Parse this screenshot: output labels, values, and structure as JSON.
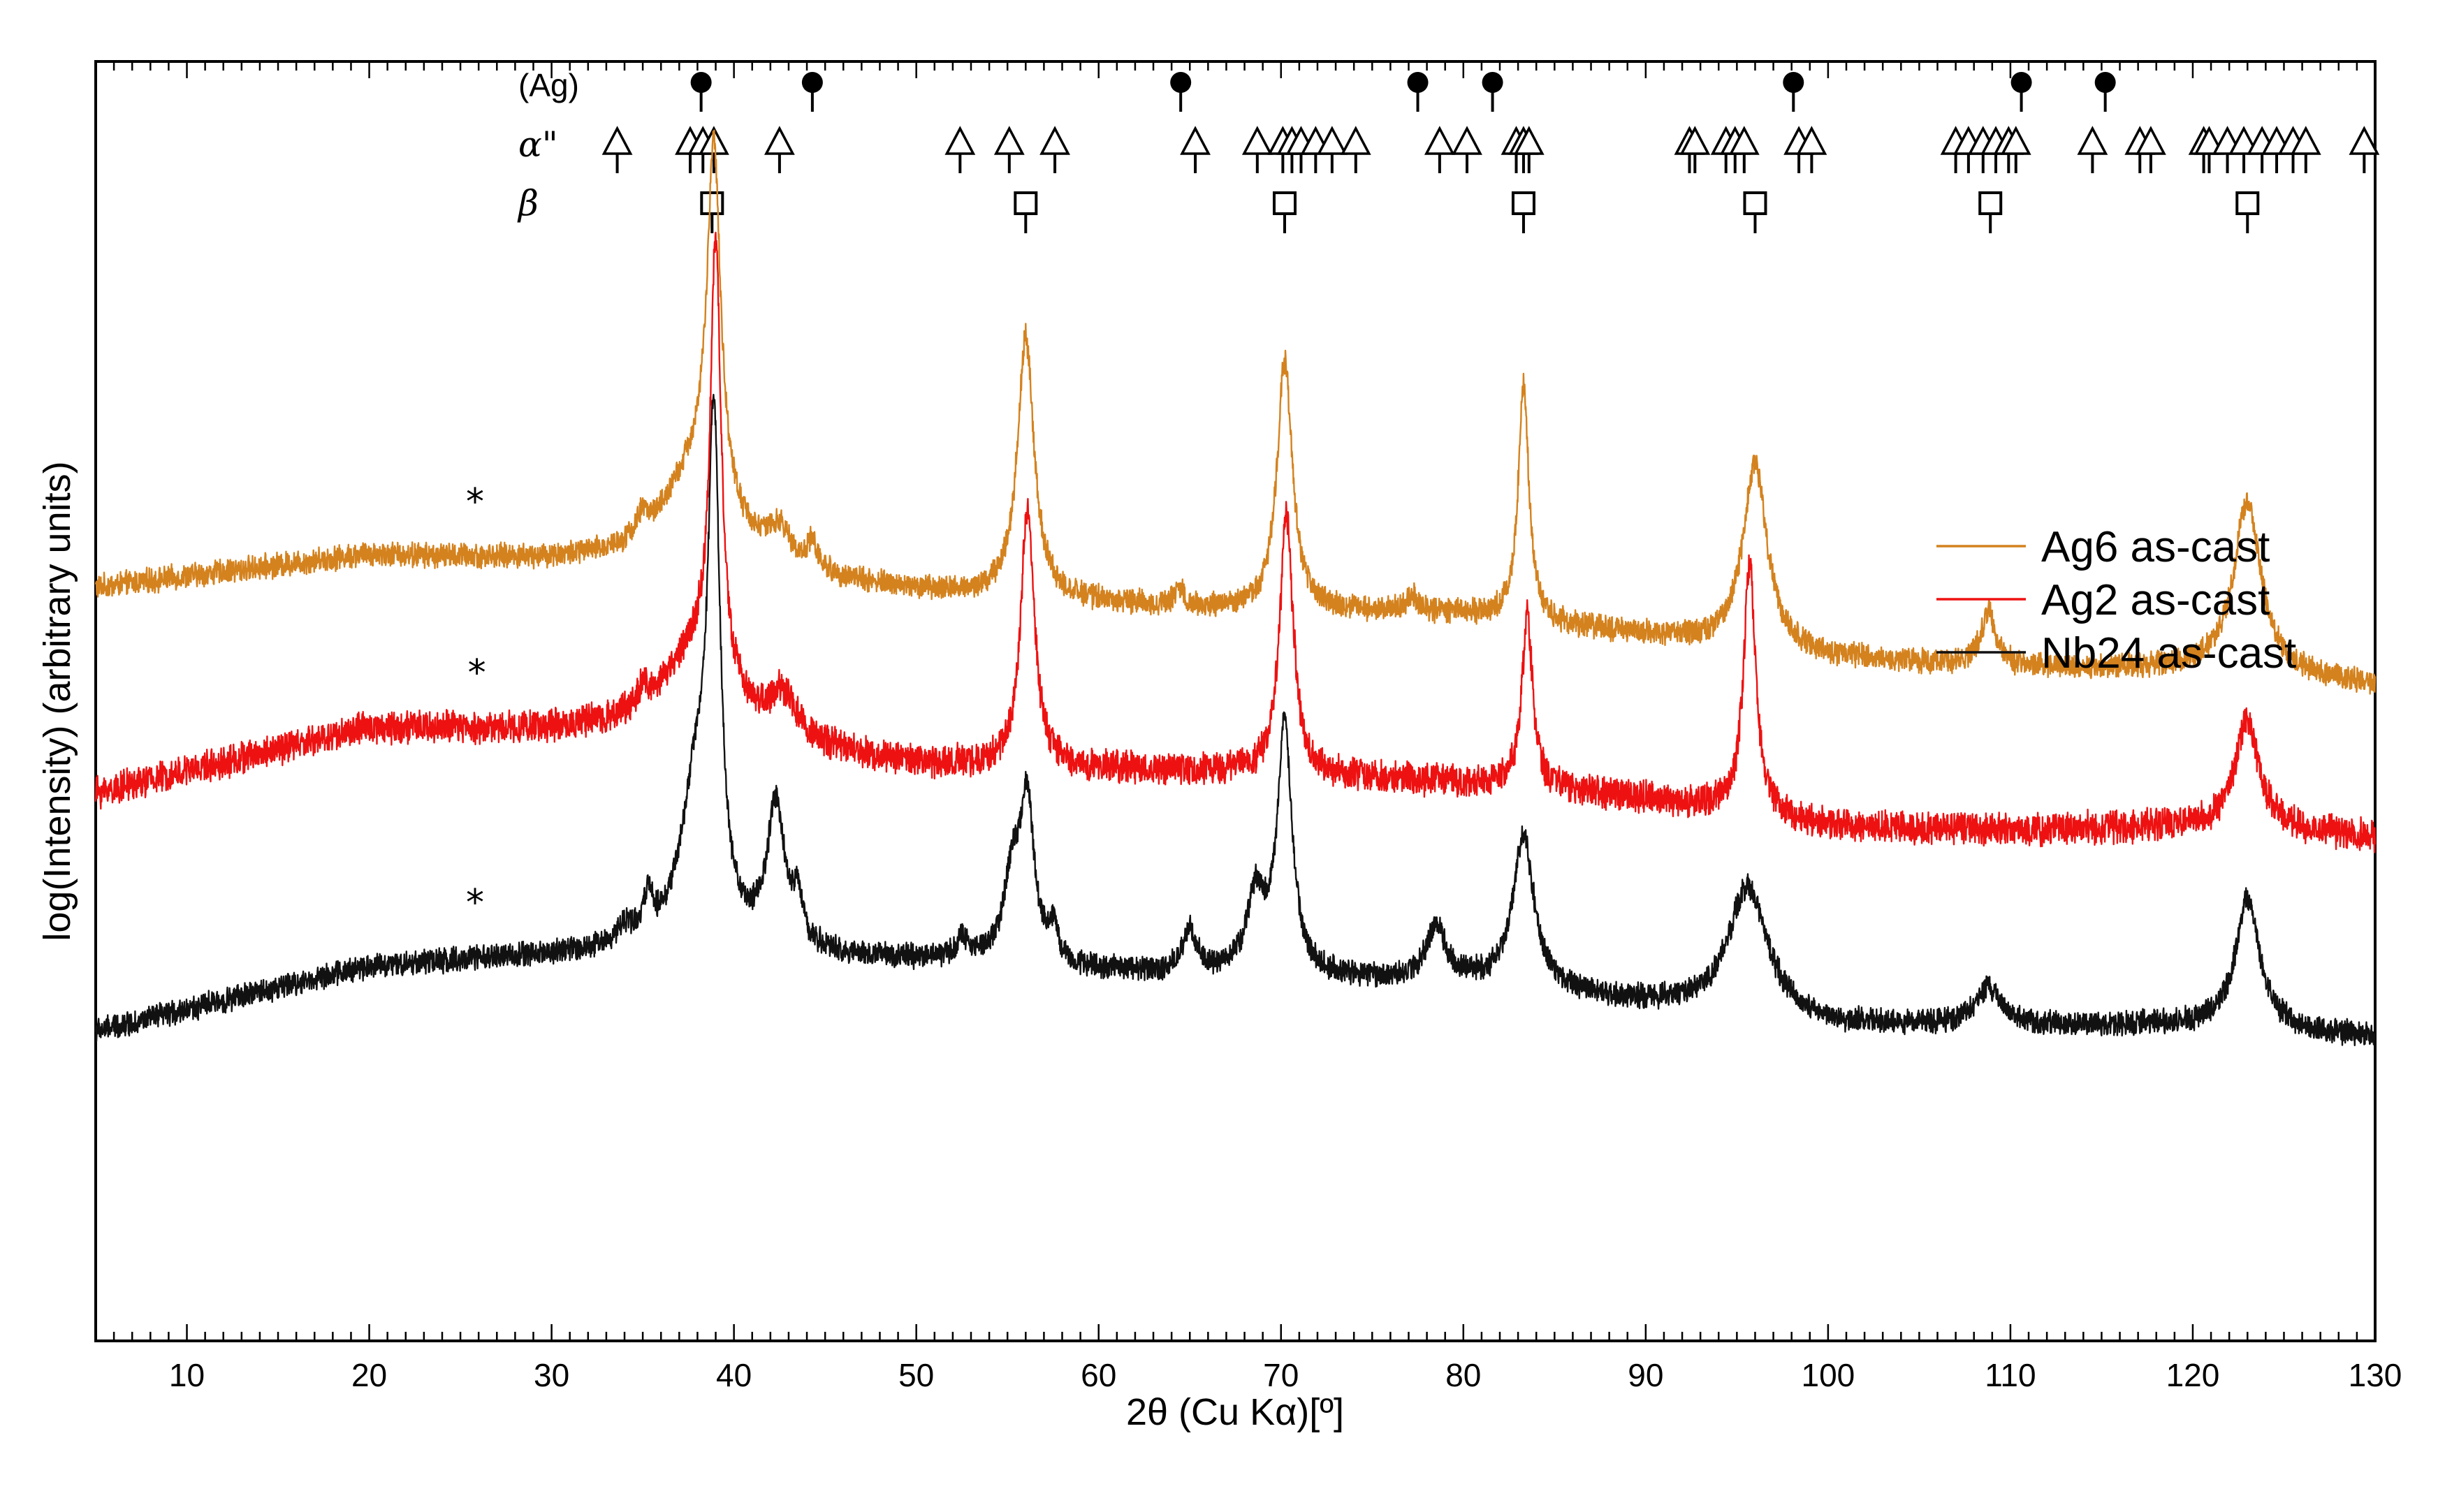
{
  "chart_data": {
    "type": "line",
    "title": "",
    "xlabel": "2θ (Cu Kα)[º]",
    "ylabel": "log(Intensity) (arbitrary units)",
    "xlim": [
      5,
      130
    ],
    "ylim": [
      0,
      100
    ],
    "x_ticks": [
      10,
      20,
      30,
      40,
      50,
      60,
      70,
      80,
      90,
      100,
      110,
      120,
      130
    ],
    "legend_position": "right",
    "series": [
      {
        "name": "Ag6 as-cast",
        "color": "#d4821e",
        "baseline": [
          [
            5,
            67
          ],
          [
            20,
            70
          ],
          [
            35,
            69
          ],
          [
            50,
            66.5
          ],
          [
            65,
            65
          ],
          [
            80,
            64.5
          ],
          [
            90,
            62.5
          ],
          [
            100,
            60.5
          ],
          [
            110,
            59.5
          ],
          [
            120,
            59.5
          ],
          [
            130,
            58
          ]
        ],
        "peaks": [
          [
            35,
            1.8,
            0.4
          ],
          [
            38,
            9,
            2.2
          ],
          [
            38.9,
            32,
            0.45
          ],
          [
            42.5,
            3,
            0.8
          ],
          [
            44.3,
            2.5,
            0.3
          ],
          [
            56,
            24,
            0.55
          ],
          [
            64.4,
            1.8,
            0.3
          ],
          [
            70.2,
            23,
            0.5
          ],
          [
            77.2,
            1.5,
            0.4
          ],
          [
            83.3,
            22,
            0.35
          ],
          [
            96,
            17,
            0.8
          ],
          [
            108.8,
            5,
            0.5
          ],
          [
            123,
            16,
            0.9
          ]
        ],
        "noise": 1.0,
        "asterisk_x": 25.8
      },
      {
        "name": "Ag2 as-cast",
        "color": "#ee1111",
        "baseline": [
          [
            5,
            48
          ],
          [
            20,
            54
          ],
          [
            35,
            53.5
          ],
          [
            50,
            50.5
          ],
          [
            65,
            50
          ],
          [
            80,
            49
          ],
          [
            90,
            47.5
          ],
          [
            100,
            45
          ],
          [
            110,
            44.5
          ],
          [
            120,
            45
          ],
          [
            130,
            44
          ]
        ],
        "peaks": [
          [
            35,
            1.6,
            0.4
          ],
          [
            38,
            8,
            2.2
          ],
          [
            39,
            40,
            0.35
          ],
          [
            42.7,
            4,
            0.9
          ],
          [
            56.1,
            24,
            0.45
          ],
          [
            70.3,
            24,
            0.45
          ],
          [
            83.5,
            16,
            0.35
          ],
          [
            95.7,
            23,
            0.4
          ],
          [
            123,
            10,
            0.8
          ]
        ],
        "noise": 1.3,
        "asterisk_x": 25.9
      },
      {
        "name": "Nb24 as-cast",
        "color": "#111111",
        "baseline": [
          [
            5,
            26
          ],
          [
            20,
            32
          ],
          [
            35,
            33.5
          ],
          [
            50,
            32.5
          ],
          [
            65,
            31
          ],
          [
            80,
            30.5
          ],
          [
            90,
            28.5
          ],
          [
            100,
            26.5
          ],
          [
            110,
            26.5
          ],
          [
            120,
            26.5
          ],
          [
            130,
            25.5
          ]
        ],
        "peaks": [
          [
            34,
            1.5,
            0.5
          ],
          [
            35.3,
            3.5,
            0.3
          ],
          [
            37.9,
            14,
            1.0
          ],
          [
            38.9,
            44,
            0.4
          ],
          [
            42.3,
            13,
            0.6
          ],
          [
            43.5,
            4,
            0.3
          ],
          [
            52.5,
            2,
            0.4
          ],
          [
            55.3,
            8,
            0.6
          ],
          [
            56.1,
            14,
            0.45
          ],
          [
            57.5,
            3,
            0.3
          ],
          [
            65,
            4,
            0.5
          ],
          [
            68.6,
            7,
            0.6
          ],
          [
            70.2,
            23,
            0.5
          ],
          [
            78.5,
            5,
            0.6
          ],
          [
            83.3,
            14,
            0.7
          ],
          [
            95.6,
            12,
            1.3
          ],
          [
            108.8,
            3.5,
            0.8
          ],
          [
            123,
            12,
            0.8
          ]
        ],
        "noise": 1.0,
        "asterisk_x": 25.8
      }
    ],
    "asterisk_label": "*",
    "reference_phases": [
      {
        "label": "(Ag)",
        "marker": "circle",
        "positions": [
          38.2,
          44.3,
          64.5,
          77.5,
          81.6,
          98.1,
          110.6,
          115.2
        ]
      },
      {
        "label": "α\"",
        "marker": "triangle",
        "positions": [
          33.6,
          37.6,
          38.3,
          38.9,
          42.5,
          52.4,
          55.1,
          57.6,
          65.3,
          68.7,
          70.1,
          70.6,
          71.1,
          71.9,
          72.8,
          74.1,
          78.7,
          80.2,
          82.9,
          83.3,
          83.6,
          92.4,
          92.7,
          94.4,
          94.9,
          95.4,
          98.4,
          99.1,
          107,
          107.7,
          108.5,
          109.2,
          109.9,
          110.3,
          114.5,
          117.1,
          117.7,
          120.6,
          120.9,
          121.9,
          122.8,
          123.8,
          124.6,
          125.5,
          126.2,
          129.4
        ]
      },
      {
        "label": "β",
        "marker": "square",
        "positions": [
          38.8,
          56,
          70.2,
          83.3,
          96,
          108.9,
          123
        ]
      }
    ]
  }
}
